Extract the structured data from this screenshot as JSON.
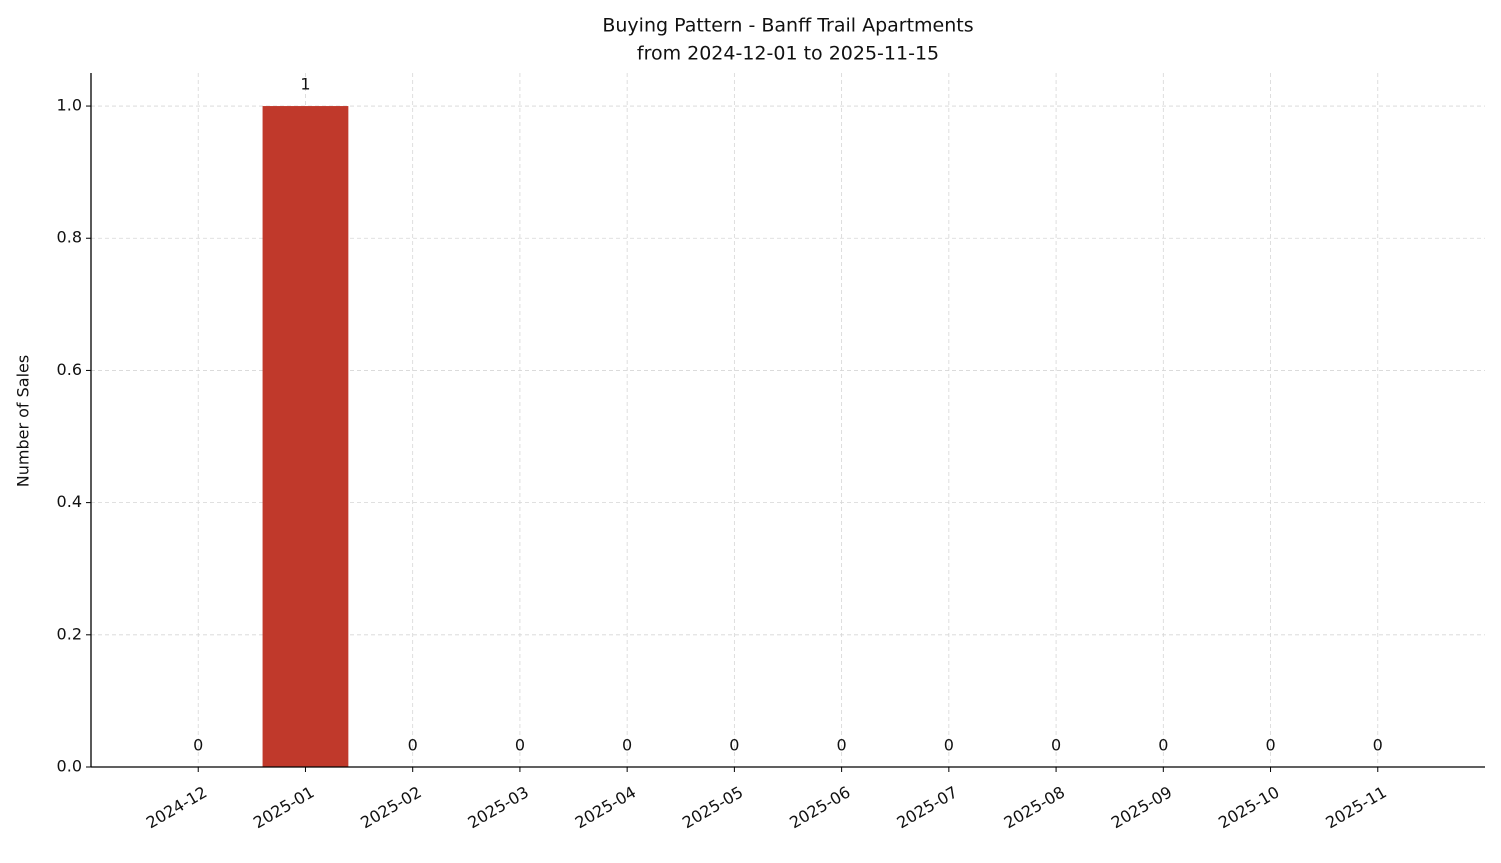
{
  "chart_data": {
    "type": "bar",
    "title": "Buying Pattern - Banff Trail Apartments",
    "subtitle": "from 2024-12-01 to 2025-11-15",
    "y_label": "Number of Sales",
    "categories": [
      "2024-12",
      "2025-01",
      "2025-02",
      "2025-03",
      "2025-04",
      "2025-05",
      "2025-06",
      "2025-07",
      "2025-08",
      "2025-09",
      "2025-10",
      "2025-11"
    ],
    "values": [
      0,
      1,
      0,
      0,
      0,
      0,
      0,
      0,
      0,
      0,
      0,
      0
    ],
    "color": "#c0392b",
    "ylim": [
      0,
      1.05
    ],
    "yticks": [
      {
        "value": 0,
        "label": "0.0"
      },
      0.2,
      0.4,
      0.6,
      0.8,
      {
        "value": 1,
        "label": "1.0"
      }
    ],
    "grid": true
  }
}
